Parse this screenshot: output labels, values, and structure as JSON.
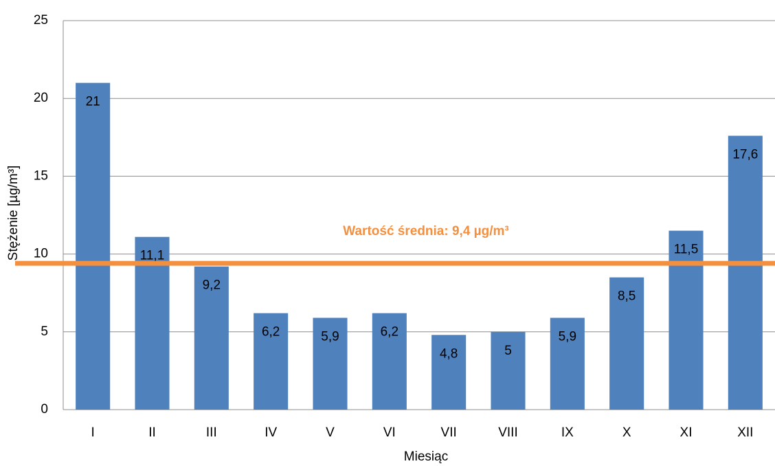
{
  "chart_data": {
    "type": "bar",
    "xlabel": "Miesiąc",
    "ylabel": "Stężenie [µg/m³]",
    "categories": [
      "I",
      "II",
      "III",
      "IV",
      "V",
      "VI",
      "VII",
      "VIII",
      "IX",
      "X",
      "XI",
      "XII"
    ],
    "values": [
      21,
      11.1,
      9.2,
      6.2,
      5.9,
      6.2,
      4.8,
      5,
      5.9,
      8.5,
      11.5,
      17.6
    ],
    "value_labels": [
      "21",
      "11,1",
      "9,2",
      "6,2",
      "5,9",
      "6,2",
      "4,8",
      "5",
      "5,9",
      "8,5",
      "11,5",
      "17,6"
    ],
    "color": "#4f81bd",
    "ylim": [
      0,
      25
    ],
    "yticks": [
      0,
      5,
      10,
      15,
      20,
      25
    ],
    "grid": true,
    "mean_line": {
      "value": 9.4,
      "label": "Wartość średnia: 9,4 µg/m³",
      "color": "#f39040"
    }
  }
}
